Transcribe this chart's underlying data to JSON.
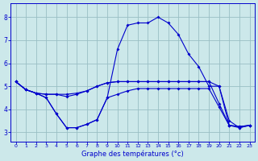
{
  "xlabel": "Graphe des températures (°c)",
  "background_color": "#cce8ea",
  "line_color": "#0000cc",
  "grid_color": "#99bfc4",
  "x_values": [
    0,
    1,
    2,
    3,
    4,
    5,
    6,
    7,
    8,
    9,
    10,
    11,
    12,
    13,
    14,
    15,
    16,
    17,
    18,
    19,
    20,
    21,
    22,
    23
  ],
  "series": [
    [
      5.2,
      4.85,
      4.7,
      4.65,
      4.65,
      4.65,
      4.7,
      4.8,
      5.0,
      5.15,
      5.2,
      5.2,
      5.2,
      5.2,
      5.2,
      5.2,
      5.2,
      5.2,
      5.2,
      5.2,
      5.0,
      3.3,
      3.25,
      3.3
    ],
    [
      5.2,
      4.85,
      4.7,
      4.65,
      4.65,
      4.55,
      4.65,
      4.8,
      5.0,
      5.15,
      5.2,
      5.2,
      5.2,
      5.2,
      5.2,
      5.2,
      5.2,
      5.2,
      5.2,
      5.2,
      4.25,
      3.3,
      3.25,
      3.3
    ],
    [
      5.2,
      4.85,
      4.7,
      4.5,
      3.8,
      3.2,
      3.2,
      3.35,
      3.55,
      4.5,
      4.65,
      4.8,
      4.9,
      4.9,
      4.9,
      4.9,
      4.9,
      4.9,
      4.9,
      4.9,
      4.1,
      3.3,
      3.2,
      3.3
    ],
    [
      5.2,
      4.85,
      4.7,
      4.5,
      3.8,
      3.2,
      3.2,
      3.35,
      3.55,
      4.5,
      6.6,
      7.65,
      7.75,
      7.75,
      8.0,
      7.75,
      7.25,
      6.4,
      5.85,
      5.0,
      5.0,
      3.5,
      3.2,
      3.3
    ]
  ],
  "ylim": [
    2.6,
    8.6
  ],
  "xlim": [
    -0.5,
    23.5
  ],
  "yticks": [
    3,
    4,
    5,
    6,
    7,
    8
  ],
  "xticks": [
    0,
    1,
    2,
    3,
    4,
    5,
    6,
    7,
    8,
    9,
    10,
    11,
    12,
    13,
    14,
    15,
    16,
    17,
    18,
    19,
    20,
    21,
    22,
    23
  ],
  "figsize": [
    3.2,
    2.0
  ],
  "dpi": 100
}
